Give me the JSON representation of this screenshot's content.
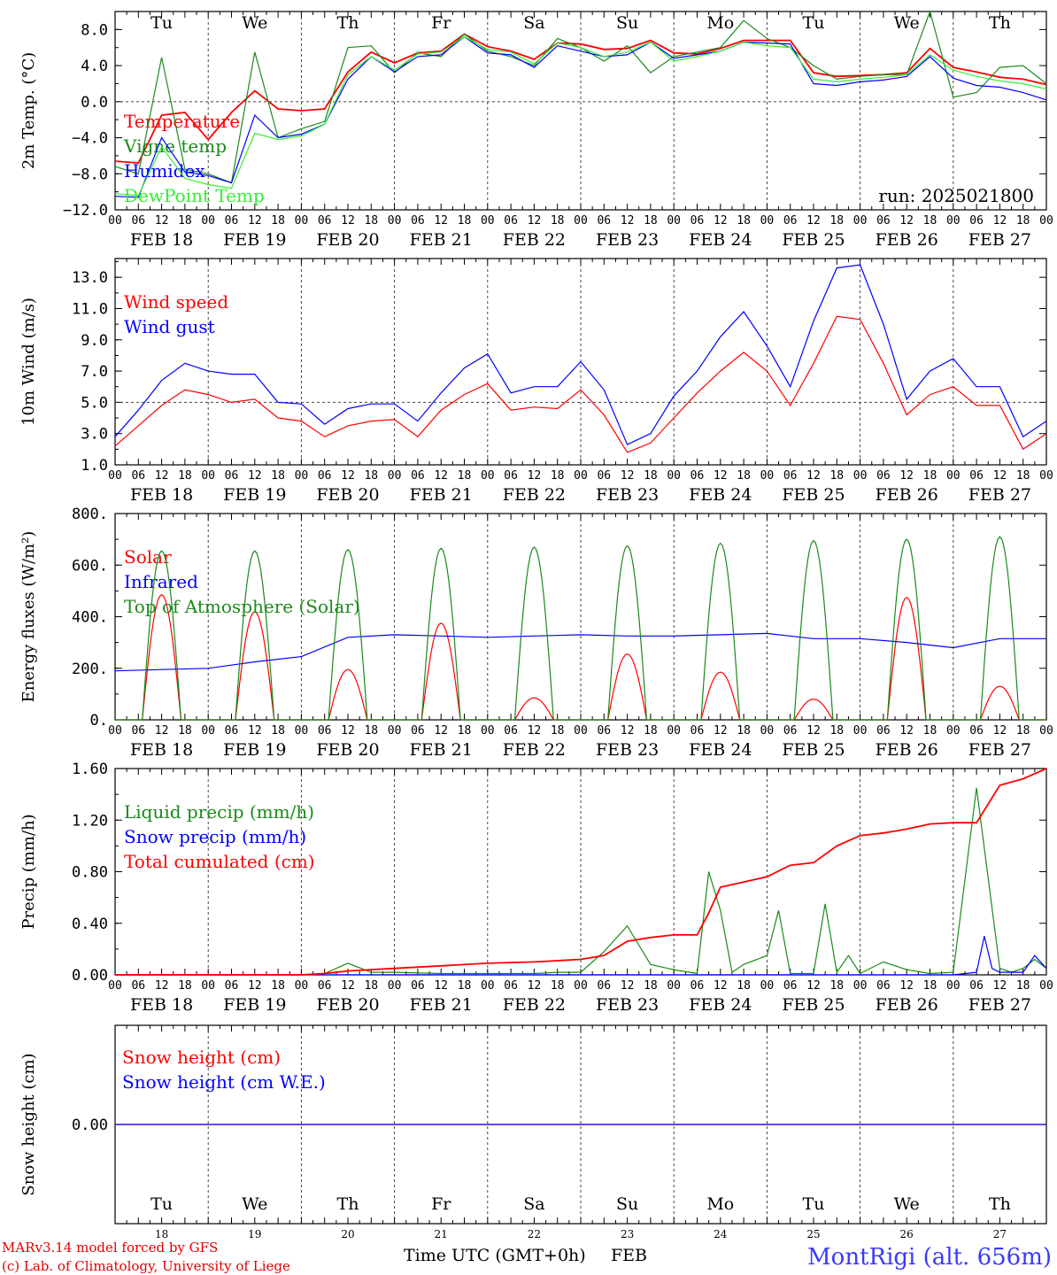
{
  "days": {
    "dates": [
      "FEB 18",
      "FEB 19",
      "FEB 20",
      "FEB 21",
      "FEB 22",
      "FEB 23",
      "FEB 24",
      "FEB 25",
      "FEB 26",
      "FEB 27"
    ],
    "weekday": [
      "Tu",
      "We",
      "Th",
      "Fr",
      "Sa",
      "Su",
      "Mo",
      "Tu",
      "We",
      "Th"
    ],
    "weekday_colors": [
      "#000000",
      "#000000",
      "#000000",
      "#000000",
      "#ff2020",
      "#ff2020",
      "#000000",
      "#000000",
      "#000000",
      "#000000"
    ],
    "day_numbers": [
      "18",
      "19",
      "20",
      "21",
      "22",
      "23",
      "24",
      "25",
      "26",
      "27"
    ],
    "hour_ticks": [
      "00",
      "06",
      "12",
      "18"
    ],
    "hour_end": "00"
  },
  "run_label": "run: 2025021800",
  "footer": {
    "model": "MARv3.14 model forced by GFS",
    "copyright": "(c) Lab. of Climatology, University of Liege",
    "xlabel": "Time UTC (GMT+0h)",
    "month": "FEB",
    "site": "MontRigi (alt. 656m)"
  },
  "chart_data": [
    {
      "type": "line",
      "ylabel": "2m Temp. (°C)",
      "ylim": [
        -12,
        10
      ],
      "yticks": [
        "8.0",
        "4.0",
        "0.0",
        "−4.0",
        "−8.0",
        "−12.0"
      ],
      "ytick_values": [
        8,
        4,
        0,
        -4,
        -8,
        -12
      ],
      "ref_line": 0,
      "x_hours": [
        0,
        6,
        12,
        18,
        24,
        30,
        36,
        42,
        48,
        54,
        60,
        66,
        72,
        78,
        84,
        90,
        96,
        102,
        108,
        114,
        120,
        126,
        132,
        138,
        144,
        150,
        156,
        162,
        168,
        174,
        180,
        186,
        192,
        198,
        204,
        210,
        216,
        222,
        228,
        234,
        240
      ],
      "series": [
        {
          "name": "Temperature",
          "color": "#ff0000",
          "values": [
            -6.6,
            -6.8,
            -1.5,
            -1.2,
            -4.2,
            -1.2,
            1.2,
            -0.8,
            -1.0,
            -0.8,
            3.3,
            5.5,
            4.3,
            5.4,
            5.6,
            7.5,
            6.1,
            5.6,
            4.7,
            6.5,
            6.4,
            5.8,
            5.9,
            6.8,
            5.4,
            5.3,
            5.9,
            6.8,
            6.8,
            6.8,
            3.2,
            2.8,
            2.9,
            3.0,
            3.2,
            5.9,
            3.8,
            3.3,
            2.7,
            2.5,
            1.9
          ]
        },
        {
          "name": "Vigne temp",
          "color": "#1a8a1a",
          "values": [
            -7.2,
            -8.0,
            4.9,
            -7.5,
            -8.0,
            -9.0,
            5.5,
            -4.0,
            -3.0,
            -2.2,
            6.0,
            6.2,
            3.2,
            5.4,
            5.0,
            7.5,
            5.6,
            5.0,
            4.0,
            7.0,
            6.0,
            4.5,
            6.2,
            3.2,
            5.0,
            5.5,
            6.0,
            9.0,
            7.0,
            6.0,
            4.0,
            2.5,
            2.8,
            3.0,
            3.0,
            10.0,
            0.5,
            1.0,
            3.8,
            4.0,
            2.0
          ]
        },
        {
          "name": "Humidex",
          "color": "#0000ff",
          "values": [
            -10.5,
            -10.6,
            -4.0,
            -7.8,
            -8.2,
            -9.0,
            -1.5,
            -4.0,
            -3.6,
            -2.5,
            2.5,
            5.0,
            3.3,
            5.0,
            5.2,
            7.2,
            5.4,
            5.2,
            3.8,
            6.2,
            5.6,
            5.0,
            5.2,
            6.6,
            4.8,
            5.2,
            5.6,
            6.6,
            6.5,
            6.4,
            2.0,
            1.8,
            2.2,
            2.4,
            2.8,
            5.0,
            2.6,
            1.8,
            1.6,
            1.0,
            0.2
          ]
        },
        {
          "name": "DewPoint Temp",
          "color": "#33ee33",
          "values": [
            -10.2,
            -10.4,
            -5.0,
            -8.5,
            -9.2,
            -9.6,
            -3.5,
            -4.2,
            -3.8,
            -2.5,
            3.0,
            5.0,
            3.5,
            5.3,
            5.5,
            7.2,
            5.8,
            5.5,
            4.2,
            6.5,
            6.0,
            5.0,
            5.5,
            6.6,
            4.5,
            5.0,
            5.6,
            6.6,
            6.2,
            6.0,
            2.5,
            2.2,
            2.5,
            2.7,
            3.0,
            5.2,
            3.5,
            2.8,
            2.3,
            2.0,
            1.4
          ]
        }
      ]
    },
    {
      "type": "line",
      "ylabel": "10m Wind (m/s)",
      "ylim": [
        1,
        14.2
      ],
      "yticks": [
        "13.0",
        "11.0",
        "9.0",
        "7.0",
        "5.0",
        "3.0",
        "1.0"
      ],
      "ytick_values": [
        13,
        11,
        9,
        7,
        5,
        3,
        1
      ],
      "ref_line": 5,
      "x_hours": [
        0,
        6,
        12,
        18,
        24,
        30,
        36,
        42,
        48,
        54,
        60,
        66,
        72,
        78,
        84,
        90,
        96,
        102,
        108,
        114,
        120,
        126,
        132,
        138,
        144,
        150,
        156,
        162,
        168,
        174,
        180,
        186,
        192,
        198,
        204,
        210,
        216,
        222,
        228,
        234,
        240
      ],
      "series": [
        {
          "name": "Wind speed",
          "color": "#ff0000",
          "values": [
            2.2,
            3.5,
            4.8,
            5.8,
            5.5,
            5.0,
            5.2,
            4.0,
            3.8,
            2.8,
            3.5,
            3.8,
            3.9,
            2.8,
            4.5,
            5.5,
            6.2,
            4.5,
            4.7,
            4.6,
            5.8,
            4.2,
            1.8,
            2.4,
            4.0,
            5.6,
            7.0,
            8.2,
            7.0,
            4.8,
            7.5,
            10.5,
            10.3,
            7.5,
            4.2,
            5.5,
            6.0,
            4.8,
            4.8,
            2.0,
            3.0
          ]
        },
        {
          "name": "Wind gust",
          "color": "#0000ff",
          "values": [
            2.8,
            4.5,
            6.4,
            7.5,
            7.0,
            6.8,
            6.8,
            5.0,
            4.9,
            3.6,
            4.6,
            4.9,
            4.9,
            3.8,
            5.6,
            7.2,
            8.1,
            5.6,
            6.0,
            6.0,
            7.6,
            5.8,
            2.3,
            3.0,
            5.4,
            7.0,
            9.2,
            10.8,
            8.6,
            6.0,
            10.2,
            13.6,
            13.8,
            10.0,
            5.2,
            7.0,
            7.8,
            6.0,
            6.0,
            2.8,
            3.8
          ]
        }
      ]
    },
    {
      "type": "line",
      "ylabel": "Energy fluxes (W/m²)",
      "ylim": [
        0,
        800
      ],
      "yticks": [
        "800.",
        "600.",
        "400.",
        "200.",
        "0."
      ],
      "ytick_values": [
        800,
        600,
        400,
        200,
        0
      ],
      "series": [
        {
          "name": "Solar",
          "color": "#ff0000",
          "day_peaks": [
            485,
            420,
            195,
            375,
            85,
            255,
            185,
            80,
            475,
            130
          ]
        },
        {
          "name": "Infrared",
          "color": "#0000ff",
          "x_hours": [
            0,
            12,
            24,
            36,
            48,
            60,
            72,
            84,
            96,
            108,
            120,
            132,
            144,
            156,
            168,
            180,
            192,
            204,
            216,
            228,
            240
          ],
          "values": [
            190,
            195,
            200,
            225,
            245,
            320,
            330,
            325,
            320,
            325,
            330,
            325,
            325,
            330,
            335,
            315,
            315,
            300,
            280,
            315,
            315
          ]
        },
        {
          "name": "Top of Atmosphere (Solar)",
          "color": "#1a8a1a",
          "day_peaks": [
            655,
            655,
            660,
            665,
            670,
            675,
            685,
            695,
            700,
            710
          ]
        }
      ]
    },
    {
      "type": "line",
      "ylabel": "Precip (mm/h)",
      "ylim": [
        0,
        1.6
      ],
      "yticks": [
        "1.60",
        "1.20",
        "0.80",
        "0.40",
        "0.00"
      ],
      "ytick_values": [
        1.6,
        1.2,
        0.8,
        0.4,
        0.0
      ],
      "series": [
        {
          "name": "Liquid precip (mm/h)",
          "color": "#1a8a1a",
          "x_hours": [
            0,
            48,
            54,
            60,
            66,
            72,
            84,
            96,
            108,
            114,
            120,
            126,
            132,
            138,
            144,
            150,
            153,
            156,
            159,
            162,
            168,
            171,
            174,
            180,
            183,
            186,
            189,
            192,
            198,
            204,
            210,
            216,
            222,
            228,
            231,
            234,
            237,
            240
          ],
          "values": [
            0,
            0,
            0.01,
            0.09,
            0.02,
            0.02,
            0.01,
            0.01,
            0.01,
            0.02,
            0.02,
            0.18,
            0.38,
            0.08,
            0.04,
            0.01,
            0.8,
            0.5,
            0.02,
            0.08,
            0.15,
            0.5,
            0.01,
            0.01,
            0.55,
            0.02,
            0.15,
            0.01,
            0.1,
            0.04,
            0.01,
            0.02,
            1.45,
            0.05,
            0.02,
            0.05,
            0.12,
            0.05
          ]
        },
        {
          "name": "Snow precip (mm/h)",
          "color": "#0000ff",
          "x_hours": [
            0,
            144,
            216,
            222,
            224,
            226,
            228,
            234,
            237,
            240
          ],
          "values": [
            0,
            0,
            0,
            0.02,
            0.3,
            0.05,
            0.02,
            0.02,
            0.15,
            0.05
          ]
        },
        {
          "name": "Total cumulated (cm)",
          "color": "#ff0000",
          "x_hours": [
            0,
            48,
            54,
            60,
            72,
            84,
            96,
            108,
            114,
            120,
            126,
            132,
            138,
            144,
            150,
            153,
            156,
            162,
            168,
            174,
            180,
            186,
            192,
            198,
            204,
            210,
            216,
            222,
            228,
            234,
            240
          ],
          "values": [
            0,
            0,
            0.01,
            0.03,
            0.05,
            0.07,
            0.09,
            0.1,
            0.11,
            0.12,
            0.15,
            0.26,
            0.29,
            0.31,
            0.31,
            0.48,
            0.68,
            0.72,
            0.76,
            0.85,
            0.87,
            1.0,
            1.08,
            1.1,
            1.13,
            1.17,
            1.18,
            1.18,
            1.47,
            1.52,
            1.6
          ]
        }
      ]
    },
    {
      "type": "line",
      "ylabel": "Snow height (cm)",
      "ylim": [
        -1,
        1
      ],
      "yticks": [
        "0.00"
      ],
      "ytick_values": [
        0
      ],
      "series": [
        {
          "name": "Snow height (cm)",
          "color": "#ff0000",
          "x_hours": [
            0,
            240
          ],
          "values": [
            0,
            0
          ]
        },
        {
          "name": "Snow height (cm W.E.)",
          "color": "#0000ff",
          "x_hours": [
            0,
            240
          ],
          "values": [
            0,
            0
          ]
        }
      ]
    }
  ]
}
